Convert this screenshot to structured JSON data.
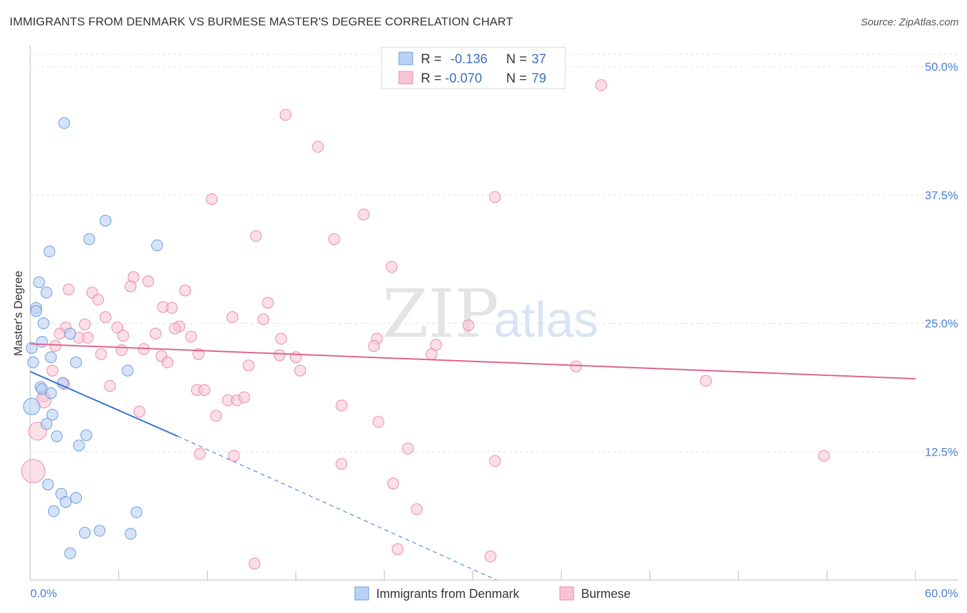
{
  "header": {
    "title": "IMMIGRANTS FROM DENMARK VS BURMESE MASTER'S DEGREE CORRELATION CHART",
    "source": "Source: ZipAtlas.com"
  },
  "watermark": {
    "zip": "ZIP",
    "atlas": "atlas"
  },
  "legend": {
    "rows": [
      {
        "r_label": "R =",
        "r_value": "-0.136",
        "n_label": "N =",
        "n_value": "37"
      },
      {
        "r_label": "R =",
        "r_value": "-0.070",
        "n_label": "N =",
        "n_value": "79"
      }
    ]
  },
  "bottom_legend": {
    "denmark": "Immigrants from Denmark",
    "burmese": "Burmese"
  },
  "chart_data": {
    "type": "scatter",
    "title": "IMMIGRANTS FROM DENMARK VS BURMESE MASTER'S DEGREE CORRELATION CHART",
    "xlabel": "",
    "ylabel": "Master's Degree",
    "xlim": [
      0,
      60
    ],
    "ylim": [
      0,
      50
    ],
    "x_tick_labels": [
      "0.0%",
      "60.0%"
    ],
    "y_ticks": [
      12.5,
      25.0,
      37.5,
      50.0
    ],
    "y_tick_labels": [
      "12.5%",
      "25.0%",
      "37.5%",
      "50.0%"
    ],
    "colors": {
      "denmark_fill": "#b9d1f4",
      "denmark_stroke": "#6b9be0",
      "denmark_line": "#2f74d0",
      "burmese_fill": "#f8c4d4",
      "burmese_stroke": "#e98aa8",
      "burmese_line": "#e0608f",
      "grid": "#e2e2e2",
      "tick_text": "#4a7fd4"
    },
    "series": [
      {
        "name": "Immigrants from Denmark",
        "r": -0.136,
        "n": 37,
        "trend": {
          "x0": 0,
          "y0": 20.3,
          "x1": 10,
          "y1": 14.0,
          "dash_x1": 31.6,
          "dash_y1": 0
        },
        "points": [
          [
            2.3,
            44.5
          ],
          [
            5.1,
            35.0
          ],
          [
            4.0,
            33.2
          ],
          [
            1.3,
            32.0
          ],
          [
            8.6,
            32.6
          ],
          [
            0.6,
            29.0
          ],
          [
            1.1,
            28.0
          ],
          [
            0.4,
            26.5
          ],
          [
            0.4,
            26.2
          ],
          [
            0.9,
            25.0
          ],
          [
            2.7,
            24.0
          ],
          [
            0.8,
            23.2
          ],
          [
            0.1,
            22.6
          ],
          [
            1.4,
            21.7
          ],
          [
            0.2,
            21.2
          ],
          [
            3.1,
            21.2
          ],
          [
            6.6,
            20.4
          ],
          [
            2.2,
            19.2
          ],
          [
            0.7,
            18.8
          ],
          [
            0.8,
            18.6
          ],
          [
            1.4,
            18.2
          ],
          [
            0.1,
            16.9
          ],
          [
            1.5,
            16.1
          ],
          [
            1.1,
            15.2
          ],
          [
            1.8,
            14.0
          ],
          [
            3.8,
            14.1
          ],
          [
            3.3,
            13.1
          ],
          [
            1.2,
            9.3
          ],
          [
            2.1,
            8.4
          ],
          [
            2.4,
            7.6
          ],
          [
            3.1,
            8.0
          ],
          [
            1.6,
            6.7
          ],
          [
            7.2,
            6.6
          ],
          [
            3.7,
            4.6
          ],
          [
            4.7,
            4.8
          ],
          [
            6.8,
            4.5
          ],
          [
            2.7,
            2.6
          ]
        ]
      },
      {
        "name": "Burmese",
        "r": -0.07,
        "n": 79,
        "trend": {
          "x0": 0,
          "y0": 23.0,
          "x1": 60,
          "y1": 19.6
        },
        "points": [
          [
            38.7,
            48.2
          ],
          [
            17.3,
            45.3
          ],
          [
            19.5,
            42.2
          ],
          [
            12.3,
            37.1
          ],
          [
            31.5,
            37.3
          ],
          [
            22.6,
            35.6
          ],
          [
            15.3,
            33.5
          ],
          [
            20.6,
            33.2
          ],
          [
            24.5,
            30.5
          ],
          [
            7.0,
            29.5
          ],
          [
            8.0,
            29.1
          ],
          [
            6.8,
            28.6
          ],
          [
            2.6,
            28.3
          ],
          [
            4.2,
            28.0
          ],
          [
            10.5,
            28.2
          ],
          [
            4.6,
            27.3
          ],
          [
            16.1,
            27.0
          ],
          [
            9.0,
            26.6
          ],
          [
            9.6,
            26.5
          ],
          [
            5.1,
            25.6
          ],
          [
            13.7,
            25.6
          ],
          [
            15.8,
            25.4
          ],
          [
            2.4,
            24.6
          ],
          [
            3.7,
            24.9
          ],
          [
            5.9,
            24.6
          ],
          [
            10.1,
            24.7
          ],
          [
            9.8,
            24.5
          ],
          [
            29.7,
            24.8
          ],
          [
            2.0,
            24.0
          ],
          [
            3.3,
            23.6
          ],
          [
            3.9,
            23.6
          ],
          [
            6.3,
            23.8
          ],
          [
            8.5,
            24.0
          ],
          [
            10.9,
            23.7
          ],
          [
            17.0,
            23.5
          ],
          [
            23.5,
            23.5
          ],
          [
            1.7,
            22.8
          ],
          [
            6.2,
            22.4
          ],
          [
            7.7,
            22.5
          ],
          [
            23.3,
            22.8
          ],
          [
            27.5,
            22.9
          ],
          [
            4.8,
            22.0
          ],
          [
            11.4,
            22.0
          ],
          [
            16.9,
            21.9
          ],
          [
            18.0,
            21.7
          ],
          [
            8.9,
            21.8
          ],
          [
            27.2,
            22.0
          ],
          [
            9.3,
            21.2
          ],
          [
            14.8,
            20.9
          ],
          [
            37.0,
            20.8
          ],
          [
            1.5,
            20.4
          ],
          [
            18.3,
            20.4
          ],
          [
            45.8,
            19.4
          ],
          [
            2.3,
            19.1
          ],
          [
            5.4,
            18.9
          ],
          [
            11.3,
            18.5
          ],
          [
            11.8,
            18.5
          ],
          [
            0.9,
            17.9
          ],
          [
            0.9,
            17.5
          ],
          [
            13.4,
            17.5
          ],
          [
            14.0,
            17.5
          ],
          [
            14.5,
            17.8
          ],
          [
            21.1,
            17.0
          ],
          [
            7.4,
            16.4
          ],
          [
            12.6,
            16.0
          ],
          [
            23.6,
            15.4
          ],
          [
            0.5,
            14.5
          ],
          [
            25.6,
            12.8
          ],
          [
            11.5,
            12.3
          ],
          [
            13.8,
            12.1
          ],
          [
            31.5,
            11.6
          ],
          [
            53.8,
            12.1
          ],
          [
            21.1,
            11.3
          ],
          [
            0.2,
            10.6
          ],
          [
            24.6,
            9.4
          ],
          [
            26.2,
            6.9
          ],
          [
            24.9,
            3.0
          ],
          [
            31.2,
            2.3
          ],
          [
            15.2,
            1.6
          ]
        ],
        "large_points": [
          [
            0.5,
            14.5
          ],
          [
            0.2,
            10.6
          ],
          [
            0.9,
            17.5
          ]
        ]
      }
    ],
    "legend_placement": "top-center",
    "grid": true
  }
}
